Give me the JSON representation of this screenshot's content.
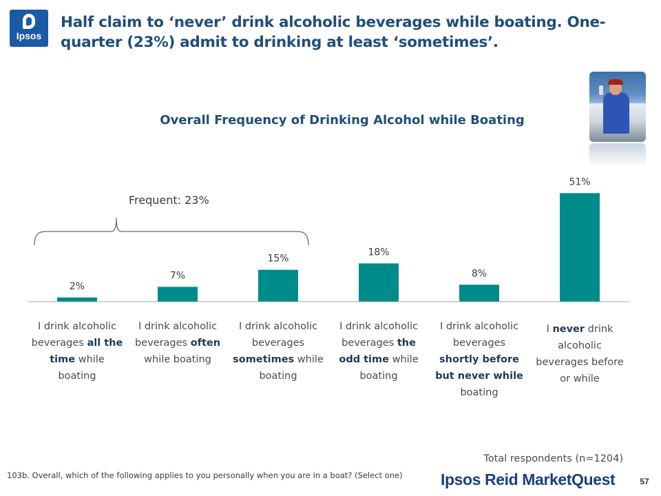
{
  "logo": {
    "text": "Ipsos"
  },
  "headline": "Half claim to ‘never’ drink alcoholic beverages while boating. One-quarter (23%) admit to drinking at least ‘sometimes’.",
  "chart_data": {
    "type": "bar",
    "title": "Overall Frequency of Drinking Alcohol while Boating",
    "categories": [
      "I drink alcoholic beverages all the time while boating",
      "I drink alcoholic beverages often while boating",
      "I drink alcoholic beverages sometimes while boating",
      "I drink alcoholic beverages the odd time while boating",
      "I drink alcoholic beverages shortly before but never while boating",
      "I never drink alcoholic beverages before or while"
    ],
    "category_parts": [
      [
        {
          "t": "I drink alcoholic beverages "
        },
        {
          "t": "all the time",
          "b": true
        },
        {
          "t": " while boating"
        }
      ],
      [
        {
          "t": "I drink alcoholic beverages "
        },
        {
          "t": "often",
          "b": true
        },
        {
          "t": " while boating"
        }
      ],
      [
        {
          "t": "I drink alcoholic beverages "
        },
        {
          "t": "sometimes",
          "b": true
        },
        {
          "t": " while boating"
        }
      ],
      [
        {
          "t": "I drink alcoholic beverages "
        },
        {
          "t": "the odd time",
          "b": true
        },
        {
          "t": " while boating"
        }
      ],
      [
        {
          "t": "I drink alcoholic beverages "
        },
        {
          "t": "shortly before but never while",
          "b": true
        },
        {
          "t": " boating"
        }
      ],
      [
        {
          "t": "I "
        },
        {
          "t": "never",
          "b": true
        },
        {
          "t": " drink alcoholic beverages before or while"
        }
      ]
    ],
    "values": [
      2,
      7,
      15,
      18,
      8,
      51
    ],
    "data_labels": [
      "2%",
      "7%",
      "15%",
      "18%",
      "8%",
      "51%"
    ],
    "ylim": [
      0,
      55
    ],
    "grid": false,
    "bar_color": "#008b8b",
    "group": {
      "label": "Frequent: 23%",
      "spans_categories": [
        0,
        1,
        2
      ]
    }
  },
  "total_respondents": "Total respondents (n=1204)",
  "footnote": "103b. Overall, which of the following applies to you personally when you are in a boat? (Select one)",
  "brand": "Ipsos Reid MarketQuest",
  "page_number": "57"
}
